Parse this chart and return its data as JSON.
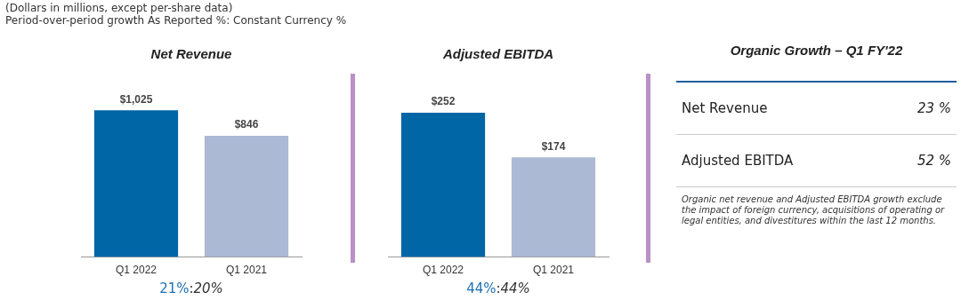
{
  "chart_data": [
    {
      "type": "other",
      "annotations": [
        "(Dollars in millions, except per-share data)",
        "Period-over-period growth As Reported %: Constant Currency %"
      ]
    },
    {
      "type": "bar",
      "title": "Net Revenue",
      "categories": [
        "Q1 2022",
        "Q1 2021"
      ],
      "values": [
        1025,
        846
      ],
      "colors": [
        "#0066a6",
        "#abb9d4"
      ],
      "value_labels": [
        "$1,025",
        "$846"
      ],
      "tick_labels": "x",
      "grid": false,
      "legend": false,
      "annotations": [
        "21%:20%"
      ]
    },
    {
      "type": "bar",
      "title": "Adjusted EBITDA",
      "categories": [
        "Q1 2022",
        "Q1 2021"
      ],
      "values": [
        252,
        174
      ],
      "colors": [
        "#0066a6",
        "#abb9d4"
      ],
      "value_labels": [
        "$252",
        "$174"
      ],
      "tick_labels": "x",
      "grid": false,
      "legend": false,
      "annotations": [
        "44%:44%"
      ]
    },
    {
      "type": "other",
      "title": "Organic Growth – Q1 FY'22",
      "categories": [
        "Net Revenue",
        "Adjusted EBITDA"
      ],
      "value_labels": [
        "23 %",
        "52 %"
      ],
      "annotations": [
        "Organic net revenue and Adjusted EBITDA growth exclude the impact of foreign currency, acquisitions of operating or legal entities, and divestitures within the last 12 months."
      ]
    }
  ]
}
